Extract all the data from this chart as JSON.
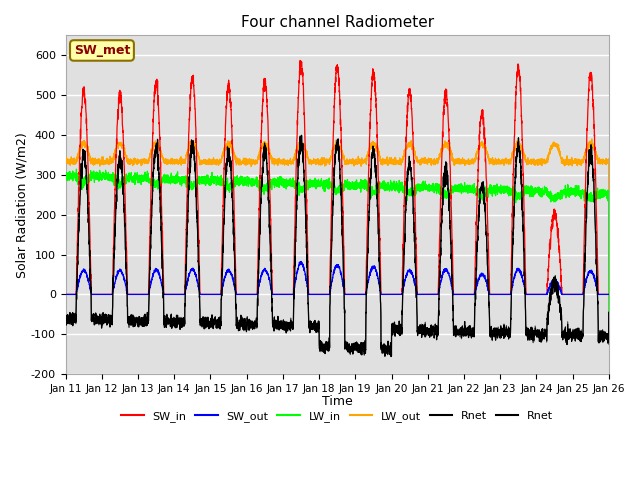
{
  "title": "Four channel Radiometer",
  "xlabel": "Time",
  "ylabel": "Solar Radiation (W/m2)",
  "ylim": [
    -200,
    650
  ],
  "yticks": [
    -200,
    -100,
    0,
    100,
    200,
    300,
    400,
    500,
    600
  ],
  "x_labels": [
    "Jan 11",
    "Jan 12",
    "Jan 13",
    "Jan 14",
    "Jan 15",
    "Jan 16",
    "Jan 17",
    "Jan 18",
    "Jan 19",
    "Jan 20",
    "Jan 21",
    "Jan 22",
    "Jan 23",
    "Jan 24",
    "Jan 25",
    "Jan 26"
  ],
  "n_days": 15,
  "background_color": "#e0e0e0",
  "annotation_text": "SW_met",
  "annotation_bg": "#ffffaa",
  "annotation_fg": "#8b0000",
  "legend_entries": [
    "SW_in",
    "SW_out",
    "LW_in",
    "LW_out",
    "Rnet",
    "Rnet"
  ],
  "sw_in_peaks": [
    510,
    500,
    530,
    545,
    525,
    535,
    580,
    570,
    555,
    510,
    505,
    455,
    570,
    200,
    555
  ],
  "sw_out_peaks": [
    60,
    60,
    62,
    63,
    60,
    62,
    80,
    72,
    70,
    60,
    62,
    50,
    63,
    35,
    58
  ],
  "lw_in_base": 298,
  "lw_out_base": 333,
  "night_rnet": -60,
  "rnet_trough_day18": -115
}
